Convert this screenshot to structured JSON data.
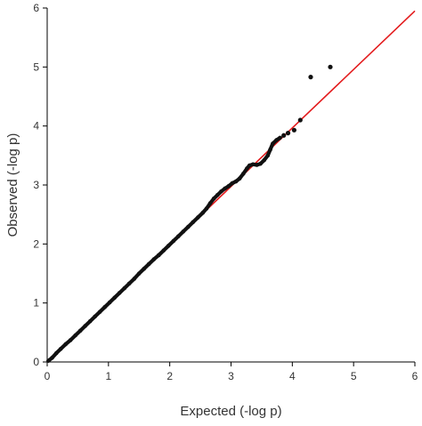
{
  "chart_data": {
    "type": "scatter",
    "title": "",
    "xlabel": "Expected (-log p)",
    "ylabel": "Observed (-log p)",
    "xlim": [
      0,
      6
    ],
    "ylim": [
      0,
      6
    ],
    "xticks": [
      "0",
      "1",
      "2",
      "3",
      "4",
      "5",
      "6"
    ],
    "yticks": [
      "0",
      "1",
      "2",
      "3",
      "4",
      "5",
      "6"
    ],
    "grid": false,
    "reference_line": {
      "from": [
        0,
        0
      ],
      "to": [
        6,
        5.95
      ],
      "color": "#e31a1c"
    },
    "points_color": "#111111",
    "series": [
      {
        "values": [
          [
            0.02,
            0.02
          ],
          [
            0.08,
            0.07
          ],
          [
            0.15,
            0.15
          ],
          [
            0.22,
            0.22
          ],
          [
            0.3,
            0.3
          ],
          [
            0.38,
            0.37
          ],
          [
            0.46,
            0.45
          ],
          [
            0.54,
            0.53
          ],
          [
            0.62,
            0.61
          ],
          [
            0.7,
            0.69
          ],
          [
            0.78,
            0.77
          ],
          [
            0.86,
            0.85
          ],
          [
            0.94,
            0.93
          ],
          [
            1.02,
            1.01
          ],
          [
            1.1,
            1.09
          ],
          [
            1.18,
            1.17
          ],
          [
            1.26,
            1.25
          ],
          [
            1.34,
            1.33
          ],
          [
            1.42,
            1.41
          ],
          [
            1.5,
            1.5
          ],
          [
            1.58,
            1.58
          ],
          [
            1.66,
            1.66
          ],
          [
            1.74,
            1.74
          ],
          [
            1.82,
            1.81
          ],
          [
            1.9,
            1.89
          ],
          [
            1.98,
            1.97
          ],
          [
            2.06,
            2.05
          ],
          [
            2.14,
            2.13
          ],
          [
            2.22,
            2.21
          ],
          [
            2.3,
            2.29
          ],
          [
            2.38,
            2.37
          ],
          [
            2.46,
            2.45
          ],
          [
            2.54,
            2.53
          ],
          [
            2.6,
            2.6
          ],
          [
            2.66,
            2.69
          ],
          [
            2.72,
            2.77
          ],
          [
            2.78,
            2.83
          ],
          [
            2.84,
            2.89
          ],
          [
            2.9,
            2.94
          ],
          [
            2.96,
            2.98
          ],
          [
            3.02,
            3.03
          ],
          [
            3.08,
            3.06
          ],
          [
            3.14,
            3.11
          ],
          [
            3.2,
            3.19
          ],
          [
            3.26,
            3.28
          ],
          [
            3.3,
            3.33
          ],
          [
            3.36,
            3.35
          ],
          [
            3.42,
            3.34
          ],
          [
            3.48,
            3.36
          ],
          [
            3.54,
            3.42
          ],
          [
            3.6,
            3.5
          ],
          [
            3.64,
            3.6
          ],
          [
            3.68,
            3.7
          ],
          [
            3.74,
            3.76
          ],
          [
            3.8,
            3.8
          ],
          [
            3.86,
            3.84
          ],
          [
            3.93,
            3.88
          ],
          [
            4.03,
            3.93
          ],
          [
            4.13,
            4.1
          ],
          [
            4.3,
            4.83
          ],
          [
            4.62,
            5.0
          ]
        ]
      }
    ]
  }
}
